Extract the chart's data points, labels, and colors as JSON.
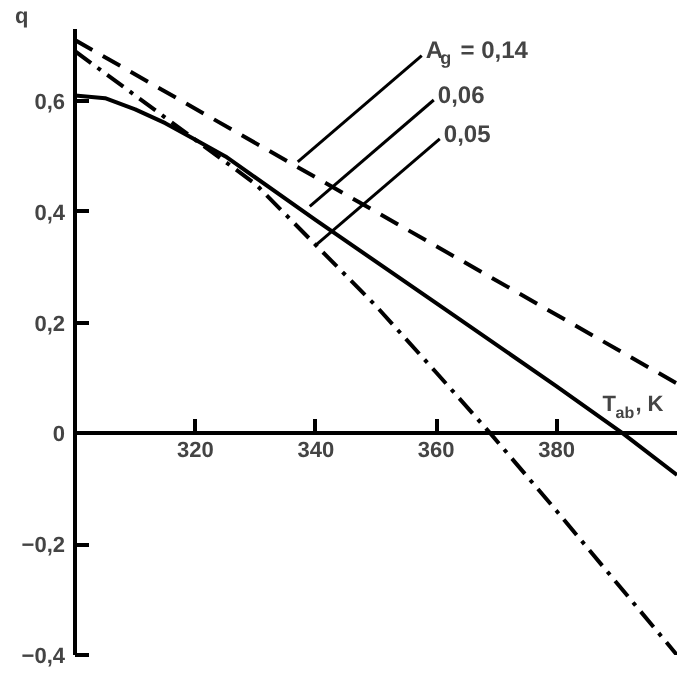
{
  "chart_data": {
    "type": "line",
    "ylabel": "q",
    "xlabel": "T$_{ab}$, K",
    "xlim": [
      300,
      400
    ],
    "ylim": [
      -0.4,
      0.73
    ],
    "xticks": [
      320,
      340,
      360,
      380
    ],
    "yticks": [
      {
        "value": 0.6,
        "label": "0,6"
      },
      {
        "value": 0.4,
        "label": "0,4"
      },
      {
        "value": 0.2,
        "label": "0,2"
      },
      {
        "value": 0,
        "label": "0"
      },
      {
        "value": -0.2,
        "label": "−0,2"
      },
      {
        "value": -0.4,
        "label": "−0,4"
      }
    ],
    "grid": false,
    "marker": "none",
    "series": [
      {
        "color": "#000000",
        "line_style": "dashed",
        "x": [
          300,
          400
        ],
        "values": [
          0.71,
          0.09
        ]
      },
      {
        "color": "#000000",
        "line_style": "solid",
        "x": [
          300,
          305,
          310,
          315,
          320,
          325,
          340,
          360,
          380,
          391,
          400
        ],
        "values": [
          0.61,
          0.605,
          0.585,
          0.56,
          0.53,
          0.5,
          0.385,
          0.235,
          0.085,
          0,
          -0.075
        ]
      },
      {
        "color": "#000000",
        "line_style": "dashdot",
        "x": [
          300,
          310,
          320,
          330,
          340,
          350,
          360,
          369,
          380,
          390,
          400
        ],
        "values": [
          0.69,
          0.61,
          0.53,
          0.45,
          0.34,
          0.23,
          0.11,
          0,
          -0.14,
          -0.27,
          -0.4
        ]
      }
    ],
    "annotations": [
      {
        "text": "A$_{g}$ = 0,14",
        "x": 337,
        "y": 0.49
      },
      {
        "text": "0,06",
        "x": 339,
        "y": 0.41
      },
      {
        "text": "0,05",
        "x": 340,
        "y": 0.34
      }
    ]
  }
}
